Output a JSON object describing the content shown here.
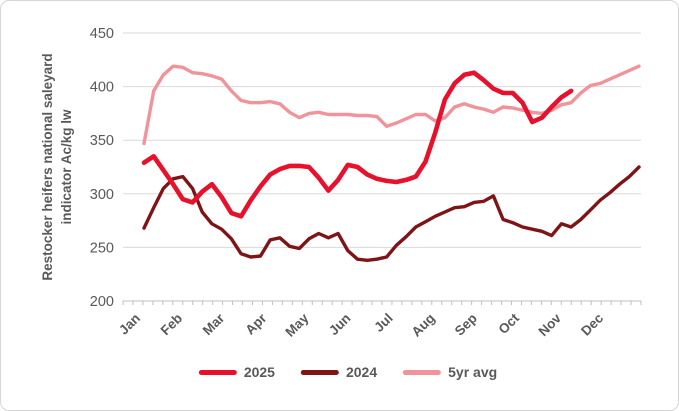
{
  "chart_data": {
    "type": "line",
    "title": "",
    "ylabel_line1": "Restocker heifers national saleyard",
    "ylabel_line2": "indicator Ac/kg lw",
    "x_unit": "weekly data points, Jan through Dec",
    "x_tick_labels": [
      "Jan",
      "Feb",
      "Mar",
      "Apr",
      "May",
      "Jun",
      "Jul",
      "Aug",
      "Sep",
      "Oct",
      "Nov",
      "Dec"
    ],
    "y_ticks": [
      450,
      400,
      350,
      300,
      250,
      200
    ],
    "ylim": [
      200,
      450
    ],
    "grid": true,
    "legend_position": "bottom",
    "text_color": "#595959",
    "grid_color": "#d9d9d9",
    "axis_color": "#bfbfbf",
    "series": [
      {
        "name": "2025",
        "color": "#e8112b",
        "width": 4.6,
        "values": [
          329,
          335,
          322,
          309,
          295,
          292,
          302,
          309,
          297,
          282,
          279,
          294,
          307,
          318,
          323,
          326,
          326,
          325,
          315,
          303,
          313,
          327,
          325,
          318,
          314,
          312,
          311,
          313,
          316,
          330,
          357,
          388,
          403,
          411,
          413,
          406,
          398,
          394,
          394,
          385,
          367,
          371,
          381,
          390,
          396
        ]
      },
      {
        "name": "2024",
        "color": "#7f1416",
        "width": 3.4,
        "values": [
          268,
          287,
          305,
          314,
          316,
          305,
          283,
          272,
          267,
          258,
          244,
          241,
          242,
          257,
          259,
          251,
          249,
          258,
          263,
          259,
          263,
          247,
          239,
          238,
          239,
          241,
          252,
          260,
          269,
          274,
          279,
          283,
          287,
          288,
          292,
          293,
          298,
          276,
          273,
          269,
          267,
          265,
          261,
          272,
          269,
          276,
          285,
          294,
          301,
          309,
          316,
          325
        ]
      },
      {
        "name": "5yr avg",
        "color": "#f0939b",
        "width": 3.4,
        "values": [
          347,
          396,
          411,
          419,
          418,
          413,
          412,
          410,
          407,
          396,
          387,
          385,
          385,
          386,
          384,
          376,
          371,
          375,
          376,
          374,
          374,
          374,
          373,
          373,
          372,
          363,
          366,
          370,
          374,
          374,
          368,
          371,
          381,
          384,
          381,
          379,
          376,
          381,
          380,
          378,
          376,
          375,
          378,
          383,
          385,
          394,
          401,
          403,
          407,
          411,
          415,
          419
        ]
      }
    ]
  }
}
